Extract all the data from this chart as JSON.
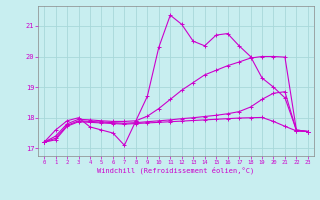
{
  "xlabel": "Windchill (Refroidissement éolien,°C)",
  "background_color": "#c8eef0",
  "grid_color": "#a8d8da",
  "line_color": "#cc00cc",
  "xlim": [
    -0.5,
    23.5
  ],
  "ylim": [
    16.75,
    21.65
  ],
  "yticks": [
    17,
    18,
    19,
    20,
    21
  ],
  "xticks": [
    0,
    1,
    2,
    3,
    4,
    5,
    6,
    7,
    8,
    9,
    10,
    11,
    12,
    13,
    14,
    15,
    16,
    17,
    18,
    19,
    20,
    21,
    22,
    23
  ],
  "curves": [
    {
      "x": [
        0,
        1,
        2,
        3,
        4,
        5,
        6,
        7,
        8,
        9,
        10,
        11,
        12,
        13,
        14,
        15,
        16,
        17,
        18,
        19,
        20,
        21,
        22,
        23
      ],
      "y": [
        17.2,
        17.6,
        17.9,
        18.0,
        17.7,
        17.6,
        17.5,
        17.1,
        17.9,
        18.7,
        20.3,
        21.35,
        21.05,
        20.5,
        20.35,
        20.7,
        20.75,
        20.35,
        20.0,
        19.3,
        19.0,
        18.65,
        17.6,
        17.55
      ]
    },
    {
      "x": [
        0,
        1,
        2,
        3,
        4,
        5,
        6,
        7,
        8,
        9,
        10,
        11,
        12,
        13,
        14,
        15,
        16,
        17,
        18,
        19,
        20,
        21,
        22,
        23
      ],
      "y": [
        17.2,
        17.4,
        17.8,
        17.95,
        17.93,
        17.9,
        17.88,
        17.88,
        17.9,
        18.05,
        18.3,
        18.6,
        18.9,
        19.15,
        19.4,
        19.55,
        19.7,
        19.82,
        19.95,
        20.0,
        20.0,
        19.98,
        17.6,
        17.55
      ]
    },
    {
      "x": [
        0,
        1,
        2,
        3,
        4,
        5,
        6,
        7,
        8,
        9,
        10,
        11,
        12,
        13,
        14,
        15,
        16,
        17,
        18,
        19,
        20,
        21,
        22,
        23
      ],
      "y": [
        17.2,
        17.33,
        17.75,
        17.9,
        17.88,
        17.86,
        17.84,
        17.82,
        17.84,
        17.87,
        17.9,
        17.93,
        17.97,
        18.0,
        18.04,
        18.08,
        18.13,
        18.2,
        18.35,
        18.6,
        18.8,
        18.85,
        17.57,
        17.55
      ]
    },
    {
      "x": [
        0,
        1,
        2,
        3,
        4,
        5,
        6,
        7,
        8,
        9,
        10,
        11,
        12,
        13,
        14,
        15,
        16,
        17,
        18,
        19,
        20,
        21,
        22,
        23
      ],
      "y": [
        17.2,
        17.28,
        17.72,
        17.87,
        17.85,
        17.83,
        17.81,
        17.79,
        17.81,
        17.83,
        17.85,
        17.87,
        17.89,
        17.91,
        17.93,
        17.95,
        17.97,
        17.99,
        18.0,
        18.01,
        17.88,
        17.72,
        17.57,
        17.55
      ]
    }
  ]
}
